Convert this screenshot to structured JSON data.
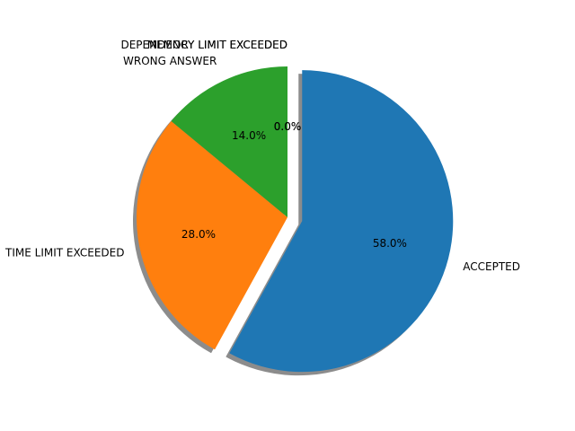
{
  "chart_data": {
    "type": "pie",
    "labels": [
      "ACCEPTED",
      "TIME LIMIT EXCEEDED",
      "WRONG ANSWER",
      "MEMORY LIMIT EXCEEDED",
      "DEPENDENCY LIMIT EXCEEDED"
    ],
    "values": [
      58.0,
      28.0,
      14.0,
      0.0,
      0.0
    ],
    "percent_labels": [
      "58.0%",
      "28.0%",
      "14.0%",
      "0.0%",
      "0.0%"
    ],
    "colors": [
      "#1f77b4",
      "#ff7f0e",
      "#2ca02c",
      "#d62728",
      "#9467bd"
    ],
    "explode": [
      0.1,
      0,
      0,
      0,
      0
    ],
    "start_angle_deg": 90,
    "shadow": true,
    "legend": "none"
  }
}
